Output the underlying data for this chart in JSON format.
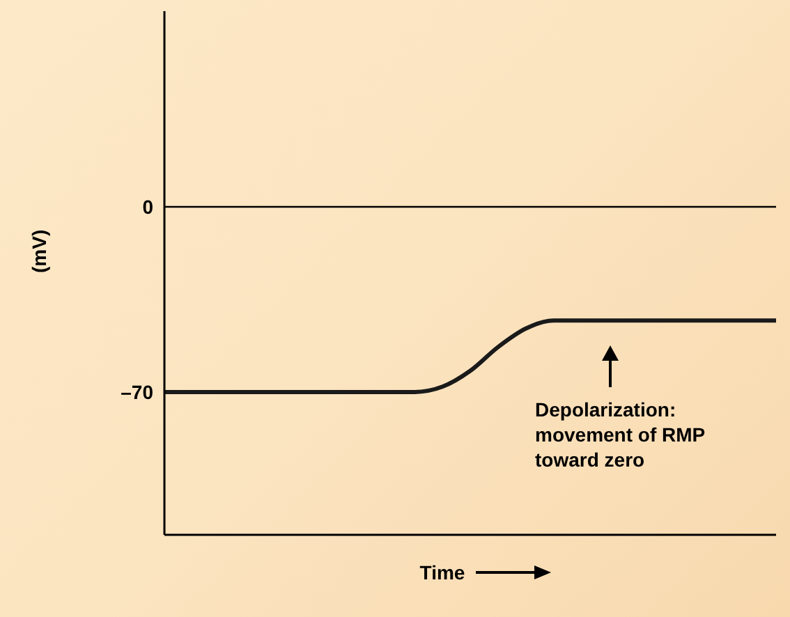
{
  "chart_data": {
    "type": "line",
    "ylabel": "(mV)",
    "xlabel": "Time",
    "categories": [
      null,
      null,
      null,
      null,
      null,
      null,
      null,
      null,
      null,
      null,
      null,
      null,
      null,
      null,
      null,
      null,
      null,
      null,
      null,
      null,
      null,
      null,
      null
    ],
    "series": [
      {
        "color": "#1a1a1a",
        "values": [
          -70,
          -70,
          -70,
          -70,
          -70,
          -70,
          -70,
          -70,
          -70,
          -70,
          -68,
          -62,
          -53,
          -46,
          -43,
          -43,
          -43,
          -43,
          -43,
          -43,
          -43,
          -43,
          -43
        ]
      }
    ],
    "ylim": [
      -124,
      74
    ],
    "yticks": [
      0,
      {
        "value": -70,
        "label": "–70"
      }
    ],
    "ref_lines": [
      {
        "axis": "y",
        "value": 0,
        "color": "#000000"
      }
    ],
    "annotations": [
      "Depolarization:\nmovement of RMP\ntoward zero"
    ],
    "grid": false,
    "legend": false,
    "marker": "none",
    "line_style": "solid"
  }
}
